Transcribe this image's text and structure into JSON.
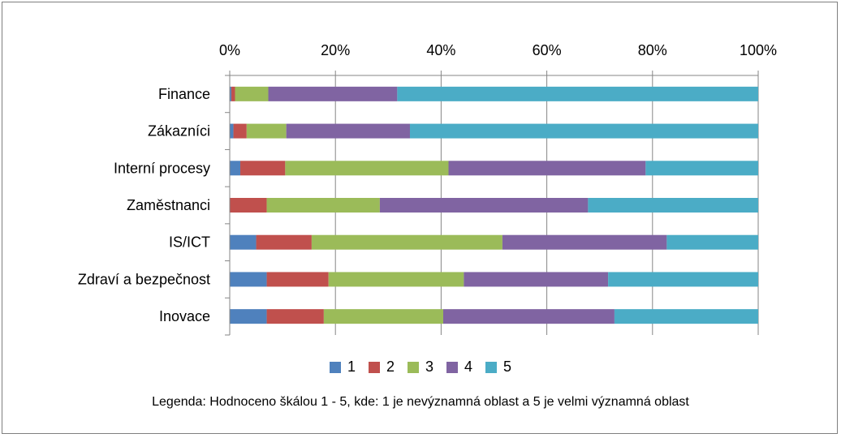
{
  "chart_data": {
    "type": "bar",
    "orientation": "horizontal",
    "stacked": "percent",
    "categories": [
      "Finance",
      "Zákazníci",
      "Interní procesy",
      "Zaměstnanci",
      "IS/ICT",
      "Zdraví a bezpečnost",
      "Inovace"
    ],
    "series": [
      {
        "name": "1",
        "color": "#4f81bd",
        "values": [
          0.3,
          0.7,
          2.0,
          0.0,
          5.0,
          7.0,
          7.0
        ]
      },
      {
        "name": "2",
        "color": "#c0504d",
        "values": [
          0.7,
          2.5,
          8.5,
          7.0,
          10.5,
          11.7,
          10.8
        ]
      },
      {
        "name": "3",
        "color": "#9bbb59",
        "values": [
          6.3,
          7.5,
          30.9,
          21.4,
          36.1,
          25.6,
          22.6
        ]
      },
      {
        "name": "4",
        "color": "#8064a2",
        "values": [
          24.4,
          23.4,
          37.3,
          39.4,
          31.1,
          27.3,
          32.4
        ]
      },
      {
        "name": "5",
        "color": "#4bacc6",
        "values": [
          68.3,
          65.9,
          21.3,
          32.2,
          17.3,
          28.4,
          27.2
        ]
      }
    ],
    "x_ticks": [
      "0%",
      "20%",
      "40%",
      "60%",
      "80%",
      "100%"
    ],
    "xlim": [
      0,
      100
    ],
    "x_axis_position": "top",
    "grid": true,
    "legend_position": "bottom"
  },
  "note": "Legenda: Hodnoceno škálou 1 - 5, kde: 1 je nevýznamná oblast a 5 je velmi významná oblast"
}
